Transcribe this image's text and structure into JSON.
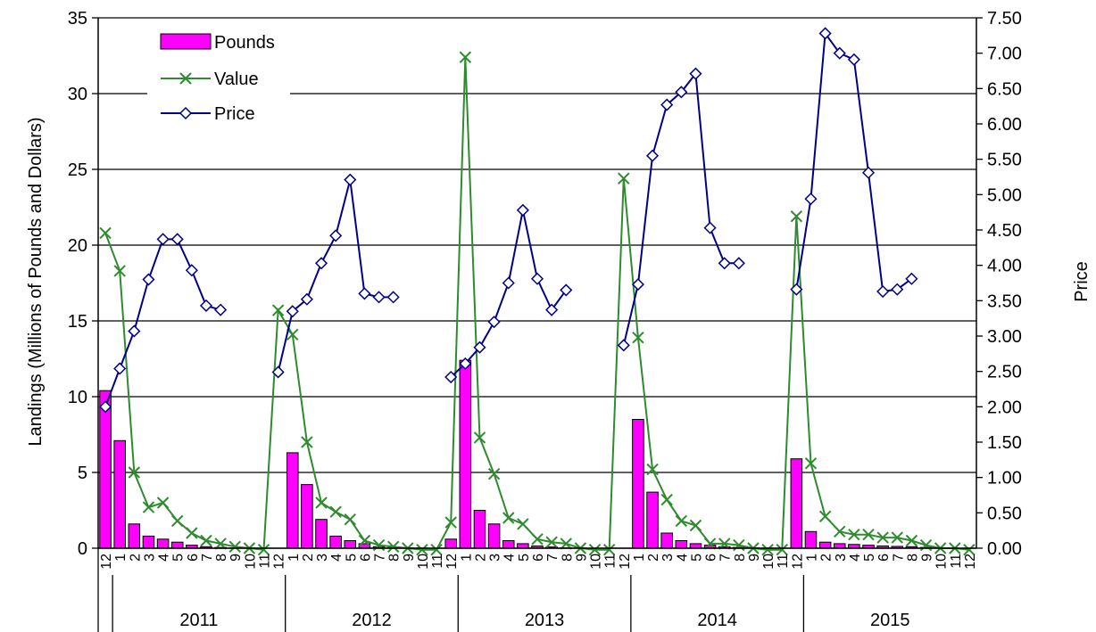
{
  "chart_data": {
    "type": "bar",
    "title": "",
    "ylabel_left": "Landings  (Millions of Pounds and Dollars)",
    "ylabel_right": "Price",
    "ylim_left": [
      0,
      35
    ],
    "ylim_right": [
      0,
      7.5
    ],
    "yticks_left": [
      "0",
      "5",
      "10",
      "15",
      "20",
      "25",
      "30",
      "35"
    ],
    "yticks_right": [
      "0.00",
      "0.50",
      "1.00",
      "1.50",
      "2.00",
      "2.50",
      "3.00",
      "3.50",
      "4.00",
      "4.50",
      "5.00",
      "5.50",
      "6.00",
      "6.50",
      "7.00",
      "7.50"
    ],
    "grid": true,
    "legend_position": "top-left",
    "x_months": [
      "12",
      "1",
      "2",
      "3",
      "4",
      "5",
      "6",
      "7",
      "8",
      "9",
      "10",
      "11",
      "12",
      "1",
      "2",
      "3",
      "4",
      "5",
      "6",
      "7",
      "8",
      "9",
      "10",
      "11",
      "12",
      "1",
      "2",
      "3",
      "4",
      "5",
      "6",
      "7",
      "8",
      "9",
      "10",
      "11",
      "12",
      "1",
      "2",
      "3",
      "4",
      "5",
      "6",
      "7",
      "8",
      "9",
      "10",
      "11",
      "12",
      "1",
      "2",
      "3",
      "4",
      "5",
      "6",
      "7",
      "8",
      "9",
      "10",
      "11",
      "12"
    ],
    "years": [
      {
        "label": "2011",
        "start": 1,
        "end": 12
      },
      {
        "label": "2012",
        "start": 13,
        "end": 24
      },
      {
        "label": "2013",
        "start": 25,
        "end": 36
      },
      {
        "label": "2014",
        "start": 37,
        "end": 48
      },
      {
        "label": "2015",
        "start": 49,
        "end": 60
      }
    ],
    "series": [
      {
        "name": "Pounds",
        "kind": "bar",
        "axis": "left",
        "color": "#ff00ff",
        "values": [
          10.4,
          7.1,
          1.6,
          0.8,
          0.6,
          0.4,
          0.2,
          0.1,
          0.05,
          0.02,
          0.01,
          0.0,
          0.0,
          6.3,
          4.2,
          1.9,
          0.8,
          0.5,
          0.3,
          0.1,
          0.05,
          0.02,
          0.01,
          0.0,
          0.6,
          12.4,
          2.5,
          1.6,
          0.5,
          0.3,
          0.15,
          0.08,
          0.03,
          0.01,
          0.0,
          0.0,
          0.0,
          8.5,
          3.7,
          1.0,
          0.5,
          0.3,
          0.2,
          0.1,
          0.05,
          0.02,
          0.01,
          0.0,
          5.9,
          1.1,
          0.4,
          0.3,
          0.25,
          0.2,
          0.15,
          0.12,
          0.1,
          0.05,
          0.01,
          0.0,
          0.0
        ]
      },
      {
        "name": "Value",
        "kind": "line",
        "axis": "left",
        "color": "#2e8b2e",
        "marker": "x",
        "values": [
          20.8,
          18.3,
          5.0,
          2.7,
          3.0,
          1.8,
          1.0,
          0.5,
          0.3,
          0.1,
          0.0,
          -0.1,
          15.7,
          14.1,
          7.0,
          3.0,
          2.4,
          1.9,
          0.5,
          0.2,
          0.1,
          0.0,
          -0.1,
          -0.1,
          1.7,
          32.4,
          7.3,
          4.9,
          2.0,
          1.6,
          0.6,
          0.4,
          0.3,
          0.0,
          -0.1,
          -0.1,
          24.4,
          13.9,
          5.2,
          3.2,
          1.8,
          1.5,
          0.3,
          0.3,
          0.2,
          0.0,
          -0.1,
          -0.1,
          21.9,
          5.6,
          2.1,
          1.1,
          0.9,
          0.9,
          0.7,
          0.7,
          0.5,
          0.2,
          0.0,
          0.0,
          -0.1
        ]
      },
      {
        "name": "Price",
        "kind": "line",
        "axis": "right",
        "color": "#00008b",
        "marker": "diamond",
        "values": [
          2.0,
          2.54,
          3.07,
          3.8,
          4.37,
          4.37,
          3.93,
          3.43,
          3.37,
          null,
          null,
          null,
          2.49,
          3.35,
          3.52,
          4.03,
          4.42,
          5.21,
          3.6,
          3.55,
          3.55,
          null,
          null,
          null,
          2.42,
          2.61,
          2.84,
          3.2,
          3.75,
          4.78,
          3.81,
          3.37,
          3.65,
          null,
          null,
          null,
          2.87,
          3.73,
          5.55,
          6.27,
          6.45,
          6.71,
          4.53,
          4.03,
          4.03,
          null,
          null,
          null,
          3.66,
          4.94,
          7.28,
          7.0,
          6.91,
          5.31,
          3.63,
          3.66,
          3.81,
          null,
          null,
          null,
          null
        ]
      }
    ]
  }
}
